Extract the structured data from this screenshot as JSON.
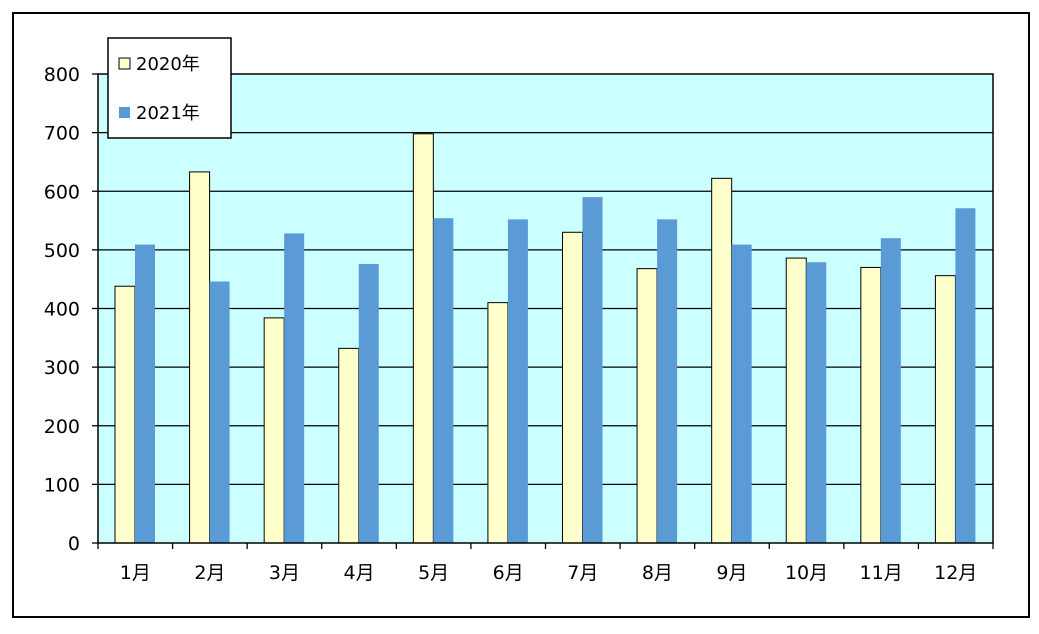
{
  "chart_data": {
    "type": "bar",
    "categories": [
      "1月",
      "2月",
      "3月",
      "4月",
      "5月",
      "6月",
      "7月",
      "8月",
      "9月",
      "10月",
      "11月",
      "12月"
    ],
    "series": [
      {
        "name": "2020年",
        "color": "#ffffcc",
        "values": [
          438,
          633,
          384,
          332,
          698,
          410,
          530,
          468,
          622,
          486,
          470,
          456
        ]
      },
      {
        "name": "2021年",
        "color": "#5b9bd5",
        "values": [
          509,
          446,
          528,
          476,
          554,
          552,
          590,
          552,
          509,
          479,
          520,
          571
        ]
      }
    ],
    "ylim": [
      0,
      800
    ],
    "y_ticks": [
      "0",
      "100",
      "200",
      "300",
      "400",
      "500",
      "600",
      "700",
      "800"
    ],
    "grid": true,
    "legend_position": "top-left",
    "plot_background": "#ccffff",
    "title": "",
    "xlabel": "",
    "ylabel": ""
  }
}
